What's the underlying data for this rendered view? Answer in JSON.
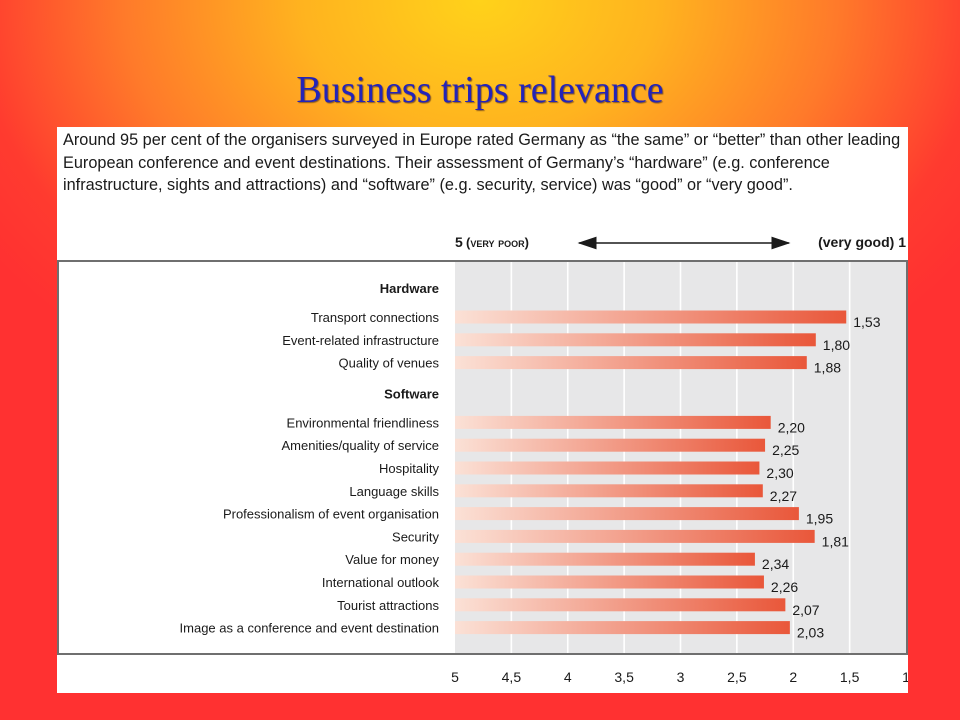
{
  "slide": {
    "title": "Business trips relevance",
    "intro": "Around 95 per cent of the organisers surveyed in Europe rated Germany as “the same” or “better” than other leading European conference and event destinations. Their assessment of Germany’s “hardware” (e.g. conference infrastructure, sights and attractions) and “software” (e.g. security, service) was “good” or “very good”."
  },
  "colors": {
    "bar": "#e9573a",
    "bar_fade": "#fbe1d6",
    "plot_bg": "#e7e7e8",
    "frame": "#6f6f6f"
  },
  "chart_data": {
    "type": "bar",
    "orientation": "horizontal",
    "scale_left": "5",
    "scale_left_note": "(very poor)",
    "scale_right": "(very good) 1",
    "xlim": [
      5,
      1
    ],
    "x_ticks": [
      "5",
      "4,5",
      "4",
      "3,5",
      "3",
      "2,5",
      "2",
      "1,5",
      "1"
    ],
    "groups": [
      {
        "name": "Hardware",
        "items": [
          {
            "label": "Transport connections",
            "value": 1.53,
            "value_label": "1,53"
          },
          {
            "label": "Event-related infrastructure",
            "value": 1.8,
            "value_label": "1,80"
          },
          {
            "label": "Quality of venues",
            "value": 1.88,
            "value_label": "1,88"
          }
        ]
      },
      {
        "name": "Software",
        "items": [
          {
            "label": "Environmental friendliness",
            "value": 2.2,
            "value_label": "2,20"
          },
          {
            "label": "Amenities/quality of service",
            "value": 2.25,
            "value_label": "2,25"
          },
          {
            "label": "Hospitality",
            "value": 2.3,
            "value_label": "2,30"
          },
          {
            "label": "Language skills",
            "value": 2.27,
            "value_label": "2,27"
          },
          {
            "label": "Professionalism of event organisation",
            "value": 1.95,
            "value_label": "1,95"
          },
          {
            "label": "Security",
            "value": 1.81,
            "value_label": "1,81"
          },
          {
            "label": "Value for money",
            "value": 2.34,
            "value_label": "2,34"
          },
          {
            "label": "International outlook",
            "value": 2.26,
            "value_label": "2,26"
          },
          {
            "label": "Tourist attractions",
            "value": 2.07,
            "value_label": "2,07"
          },
          {
            "label": "Image as a conference and event destination",
            "value": 2.03,
            "value_label": "2,03"
          }
        ]
      }
    ]
  }
}
